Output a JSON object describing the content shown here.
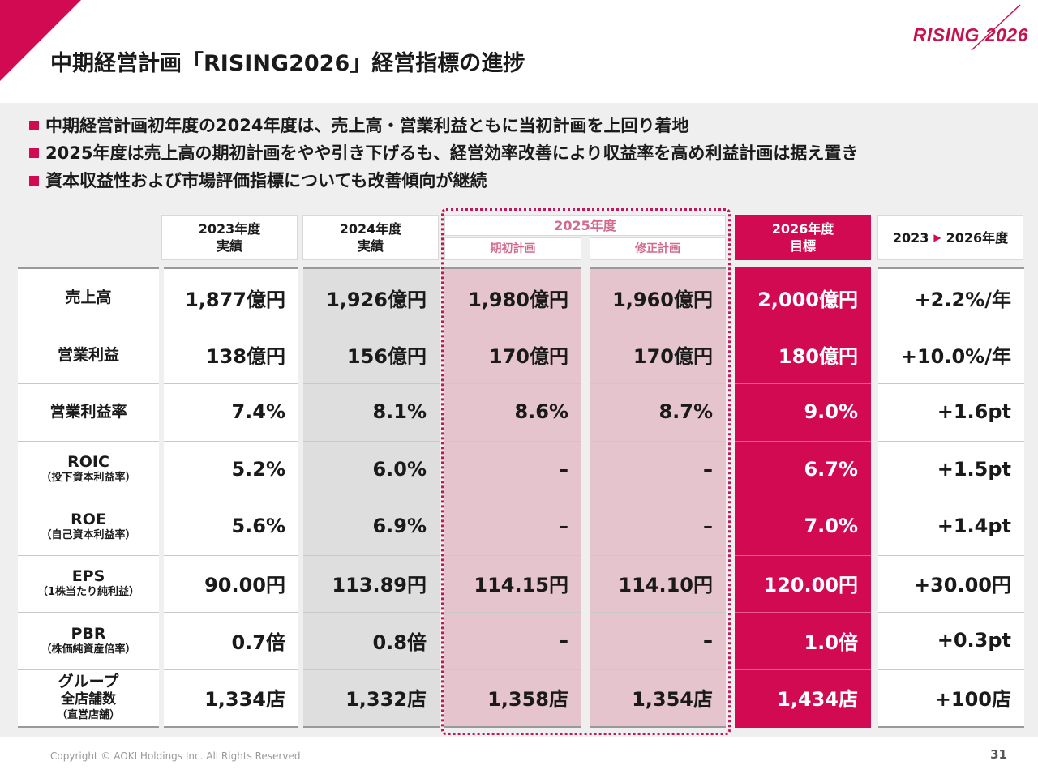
{
  "logo": "RISING 2026",
  "title": "中期経営計画「RISING2026」経営指標の進捗",
  "bullets": [
    "中期経営計画初年度の2024年度は、売上高・営業利益ともに当初計画を上回り着地",
    "2025年度は売上高の期初計画をやや引き下げるも、経営効率改善により収益率を高め利益計画は据え置き",
    "資本収益性および市場評価指標についても改善傾向が継続"
  ],
  "headers": {
    "fy2023": [
      "2023年度",
      "実績"
    ],
    "fy2024": [
      "2024年度",
      "実績"
    ],
    "fy2025": "2025年度",
    "fy2025_initial": "期初計画",
    "fy2025_revised": "修正計画",
    "fy2026": [
      "2026年度",
      "目標"
    ],
    "change_from": "2023",
    "change_to": "2026年度"
  },
  "rows": [
    {
      "label": "売上高",
      "sub": "",
      "v2023": "1,877億円",
      "v2024": "1,926億円",
      "v2025i": "1,980億円",
      "v2025r": "1,960億円",
      "v2026": "2,000億円",
      "change": "+2.2%/年"
    },
    {
      "label": "営業利益",
      "sub": "",
      "v2023": "138億円",
      "v2024": "156億円",
      "v2025i": "170億円",
      "v2025r": "170億円",
      "v2026": "180億円",
      "change": "+10.0%/年"
    },
    {
      "label": "営業利益率",
      "sub": "",
      "v2023": "7.4%",
      "v2024": "8.1%",
      "v2025i": "8.6%",
      "v2025r": "8.7%",
      "v2026": "9.0%",
      "change": "+1.6pt"
    },
    {
      "label": "ROIC",
      "sub": "（投下資本利益率）",
      "v2023": "5.2%",
      "v2024": "6.0%",
      "v2025i": "–",
      "v2025r": "–",
      "v2026": "6.7%",
      "change": "+1.5pt"
    },
    {
      "label": "ROE",
      "sub": "（自己資本利益率）",
      "v2023": "5.6%",
      "v2024": "6.9%",
      "v2025i": "–",
      "v2025r": "–",
      "v2026": "7.0%",
      "change": "+1.4pt"
    },
    {
      "label": "EPS",
      "sub": "（1株当たり純利益）",
      "v2023": "90.00円",
      "v2024": "113.89円",
      "v2025i": "114.15円",
      "v2025r": "114.10円",
      "v2026": "120.00円",
      "change": "+30.00円"
    },
    {
      "label": "PBR",
      "sub": "（株価純資産倍率）",
      "v2023": "0.7倍",
      "v2024": "0.8倍",
      "v2025i": "–",
      "v2025r": "–",
      "v2026": "1.0倍",
      "change": "+0.3pt"
    },
    {
      "label": "グループ",
      "label2": "全店舗数",
      "sub": "（直営店舗）",
      "v2023": "1,334店",
      "v2024": "1,332店",
      "v2025i": "1,358店",
      "v2025r": "1,354店",
      "v2026": "1,434店",
      "change": "+100店"
    }
  ],
  "footer": {
    "copyright": "Copyright © AOKI Holdings Inc. All Rights Reserved.",
    "page": "31"
  },
  "colors": {
    "accent": "#d20a52",
    "plan_bg": "#e6c4ce",
    "actual_bg": "#dedede"
  }
}
